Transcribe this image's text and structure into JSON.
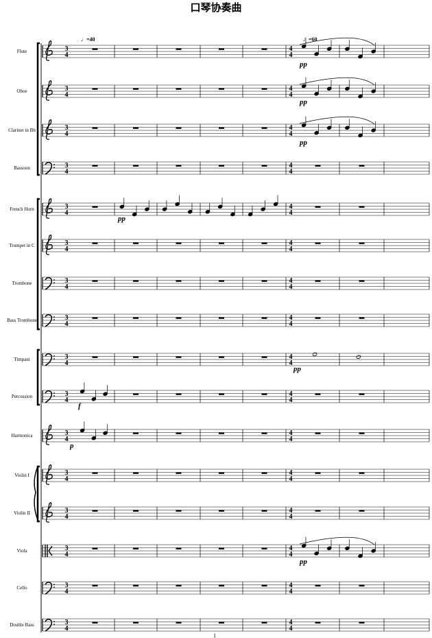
{
  "title": "口琴协奏曲",
  "tempo_marks": [
    "♩=40",
    "♩=60"
  ],
  "instruments": [
    "Flute",
    "Oboe",
    "Clarinet in Bb",
    "Bassoon",
    "French Horn",
    "Trumpet in C",
    "Trombone",
    "Bass Trombone",
    "Timpani",
    "Percussion",
    "Harmonica",
    "Violin I",
    "Violin II",
    "Viola",
    "Cello",
    "Double Bass"
  ],
  "time_signatures": [
    {
      "top": "3",
      "bottom": "4"
    },
    {
      "top": "4",
      "bottom": "4"
    }
  ],
  "dynamics": [
    "pp",
    "pp",
    "pp",
    "pp",
    "pp",
    "f",
    "p",
    "pp"
  ],
  "page_number": "1"
}
